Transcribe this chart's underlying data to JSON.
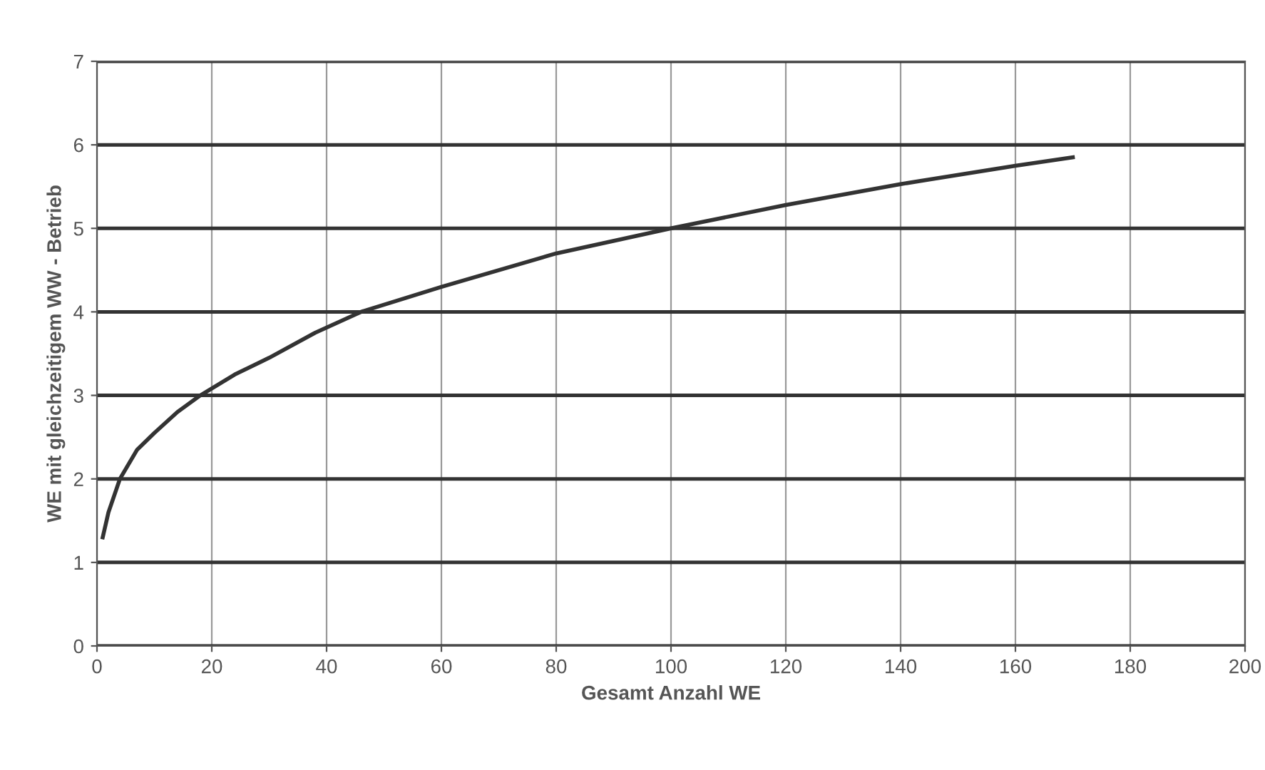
{
  "chart_data": {
    "type": "line",
    "xlabel": "Gesamt Anzahl WE",
    "ylabel": "WE mit gleichzeitigem WW - Betrieb",
    "x": [
      1,
      2,
      4,
      7,
      10,
      14,
      18,
      24,
      30,
      38,
      46,
      60,
      80,
      100,
      120,
      140,
      160,
      170
    ],
    "series": [
      {
        "color": "#333333",
        "values": [
          1.3,
          1.6,
          2.0,
          2.35,
          2.55,
          2.8,
          3.0,
          3.25,
          3.45,
          3.75,
          4.0,
          4.3,
          4.7,
          5.0,
          5.28,
          5.53,
          5.75,
          5.85
        ]
      }
    ],
    "xlim": [
      0,
      200
    ],
    "xticks": [
      0,
      20,
      40,
      60,
      80,
      100,
      120,
      140,
      160,
      180,
      200
    ],
    "ylim": [
      0,
      7
    ],
    "yticks": [
      0,
      1,
      2,
      3,
      4,
      5,
      6,
      7
    ],
    "grid": true,
    "marker": "none",
    "line_style": "solid"
  }
}
